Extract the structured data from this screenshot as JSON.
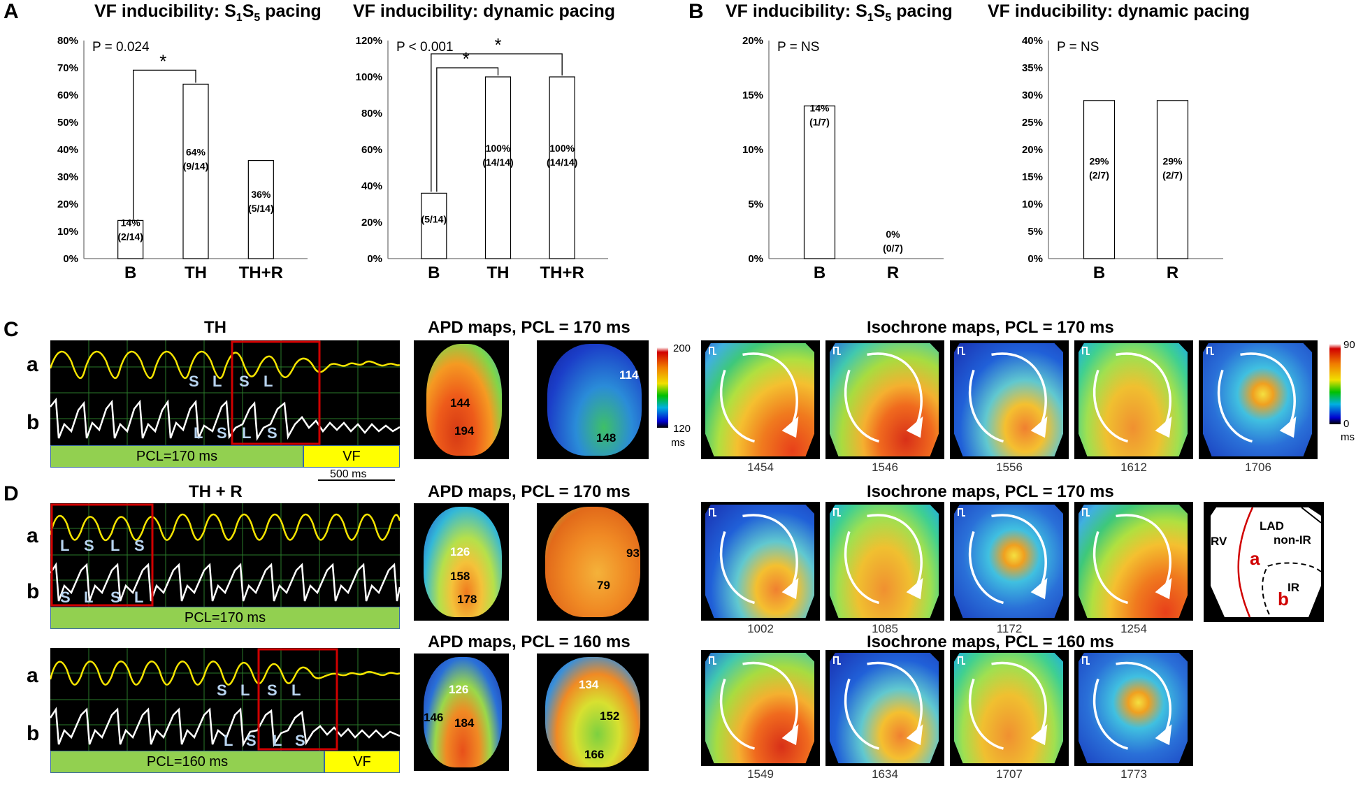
{
  "panels": {
    "A": "A",
    "B": "B",
    "C": "C",
    "D": "D"
  },
  "chart_data": [
    {
      "type": "bar",
      "id": "A1",
      "title_main": "VF inducibility: S",
      "title_sub1": "1",
      "title_mid": "S",
      "title_sub2": "5",
      "title_end": " pacing",
      "p_value": "P = 0.024",
      "categories": [
        "B",
        "TH",
        "TH+R"
      ],
      "values": [
        14,
        64,
        36
      ],
      "labels": [
        [
          "14%",
          "(2/14)"
        ],
        [
          "64%",
          "(9/14)"
        ],
        [
          "36%",
          "(5/14)"
        ]
      ],
      "ylim": [
        0,
        80
      ],
      "yticks": [
        "0%",
        "10%",
        "20%",
        "30%",
        "40%",
        "50%",
        "60%",
        "70%",
        "80%"
      ],
      "significance": [
        {
          "from": 0,
          "to": 1,
          "mark": "*"
        }
      ]
    },
    {
      "type": "bar",
      "id": "A2",
      "title": "VF inducibility: dynamic pacing",
      "p_value": "P < 0.001",
      "categories": [
        "B",
        "TH",
        "TH+R"
      ],
      "values": [
        36,
        100,
        100
      ],
      "labels": [
        [
          "(5/14)"
        ],
        [
          "100%",
          "(14/14)"
        ],
        [
          "100%",
          "(14/14)"
        ]
      ],
      "ylim": [
        0,
        120
      ],
      "yticks": [
        "0%",
        "20%",
        "40%",
        "60%",
        "80%",
        "100%",
        "120%"
      ],
      "significance": [
        {
          "from": 0,
          "to": 1,
          "mark": "*"
        },
        {
          "from": 0,
          "to": 2,
          "mark": "*"
        }
      ]
    },
    {
      "type": "bar",
      "id": "B1",
      "title_main": "VF inducibility: S",
      "title_sub1": "1",
      "title_mid": "S",
      "title_sub2": "5",
      "title_end": " pacing",
      "p_value": "P = NS",
      "categories": [
        "B",
        "R"
      ],
      "values": [
        14,
        0
      ],
      "labels": [
        [
          "14%",
          "(1/7)"
        ],
        [
          "0%",
          "(0/7)"
        ]
      ],
      "ylim": [
        0,
        20
      ],
      "yticks": [
        "0%",
        "5%",
        "10%",
        "15%",
        "20%"
      ],
      "significance": []
    },
    {
      "type": "bar",
      "id": "B2",
      "title": "VF inducibility: dynamic pacing",
      "p_value": "P = NS",
      "categories": [
        "B",
        "R"
      ],
      "values": [
        29,
        29
      ],
      "labels": [
        [
          "29%",
          "(2/7)"
        ],
        [
          "29%",
          "(2/7)"
        ]
      ],
      "ylim": [
        0,
        40
      ],
      "yticks": [
        "0%",
        "5%",
        "10%",
        "15%",
        "20%",
        "25%",
        "30%",
        "35%",
        "40%"
      ],
      "significance": []
    }
  ],
  "C": {
    "trace_title": "TH",
    "row_a": "a",
    "row_b": "b",
    "pcl_bar": "PCL=170 ms",
    "vf_bar": "VF",
    "scale": "500 ms",
    "apd_title": "APD maps, PCL = 170 ms",
    "apd_map1": [
      "144",
      "194"
    ],
    "apd_map2": [
      "114",
      "148"
    ],
    "apd_cbar": {
      "max": "200",
      "min": "120",
      "unit": "ms"
    },
    "iso_title": "Isochrone maps, PCL = 170 ms",
    "iso_frames": [
      "1454",
      "1546",
      "1556",
      "1612",
      "1706"
    ],
    "iso_cbar": {
      "max": "90",
      "min": "0",
      "unit": "ms"
    }
  },
  "D": {
    "trace_title": "TH + R",
    "row_a": "a",
    "row_b": "b",
    "pcl_bar_1": "PCL=170 ms",
    "pcl_bar_2": "PCL=160 ms",
    "vf_bar": "VF",
    "apd_title_1": "APD maps, PCL = 170 ms",
    "apd1_map1": [
      "126",
      "158",
      "178"
    ],
    "apd1_map2": [
      "93",
      "79"
    ],
    "apd_title_2": "APD maps, PCL = 160 ms",
    "apd2_map1": [
      "126",
      "146",
      "184"
    ],
    "apd2_map2": [
      "134",
      "152",
      "166"
    ],
    "iso_title_1": "Isochrone maps, PCL = 170 ms",
    "iso_frames_1": [
      "1002",
      "1085",
      "1172",
      "1254"
    ],
    "iso_title_2": "Isochrone maps, PCL = 160 ms",
    "iso_frames_2": [
      "1549",
      "1634",
      "1707",
      "1773"
    ],
    "schematic": {
      "lad": "LAD",
      "nonir": "non-IR",
      "rv": "RV",
      "ir": "IR",
      "a": "a",
      "b": "b"
    }
  },
  "colors": {
    "yellow_trace": "#f5e400",
    "white_trace": "#ffffff",
    "red_box": "#d00000",
    "pcl_green": "#92d050",
    "vf_yellow": "#ffff00"
  }
}
